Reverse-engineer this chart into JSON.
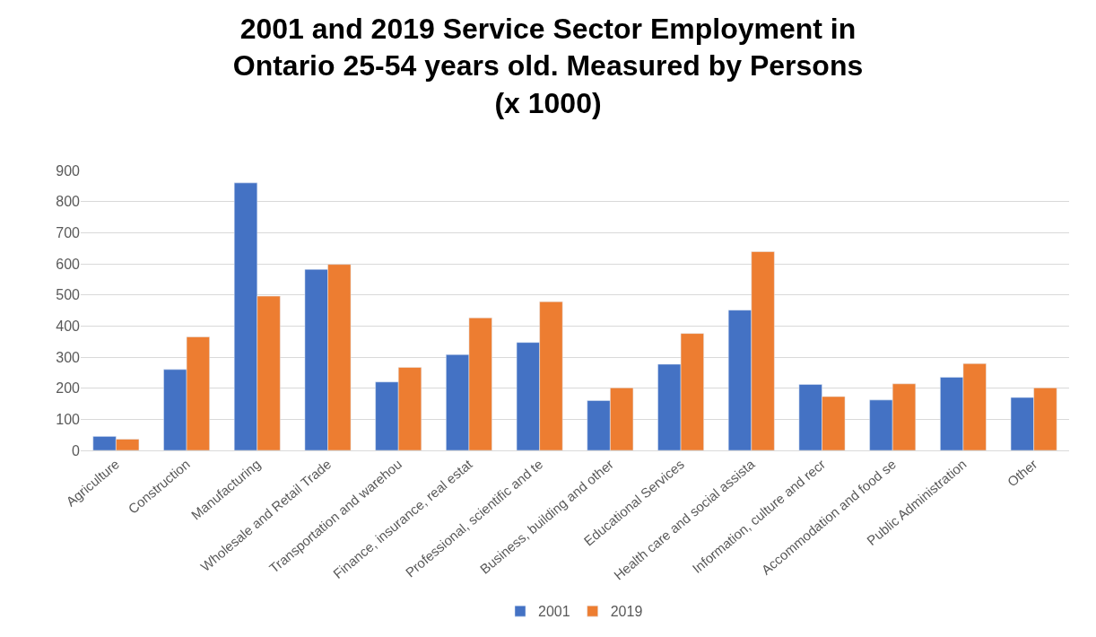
{
  "chart_data": {
    "type": "bar",
    "title": "2001 and 2019 Service Sector Employment in Ontario 25-54 years old. Measured by Persons (x 1000)",
    "categories": [
      "Agriculture",
      "Construction",
      "Manufacturing",
      "Wholesale and Retail Trade",
      "Transportation and warehou",
      "Finance, insurance, real estat",
      "Professional, scientific and te",
      "Business, building and other",
      "Educational Services",
      "Health care and social assista",
      "Information, culture and recr",
      "Accommodation and food se",
      "Public Administration",
      "Other"
    ],
    "series": [
      {
        "name": "2001",
        "color": "#4472c4",
        "values": [
          45,
          260,
          860,
          582,
          220,
          308,
          347,
          160,
          277,
          451,
          212,
          162,
          235,
          170
        ]
      },
      {
        "name": "2019",
        "color": "#ed7d31",
        "values": [
          36,
          365,
          496,
          598,
          267,
          426,
          478,
          201,
          376,
          639,
          173,
          214,
          279,
          201
        ]
      }
    ],
    "ylim": [
      0,
      900
    ],
    "yticks": [
      0,
      100,
      200,
      300,
      400,
      500,
      600,
      700,
      800,
      900
    ],
    "grid": "y",
    "legend": "bottom"
  }
}
